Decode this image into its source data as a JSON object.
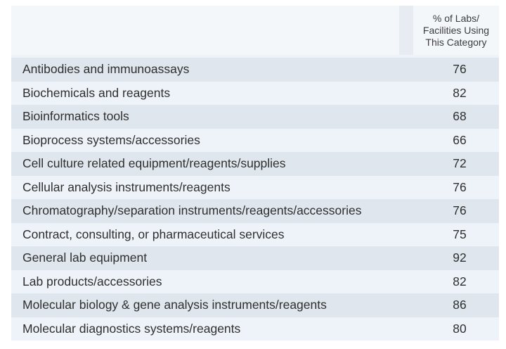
{
  "chart_data": {
    "type": "table",
    "header": "% of Labs/\nFacilities Using\nThis Category",
    "categories": [
      "Antibodies and immunoassays",
      "Biochemicals and reagents",
      "Bioinformatics tools",
      "Bioprocess systems/accessories",
      "Cell culture related equipment/reagents/supplies",
      "Cellular analysis instruments/reagents",
      "Chromatography/separation instruments/reagents/accessories",
      "Contract, consulting, or pharmaceutical services",
      "General lab equipment",
      "Lab products/accessories",
      "Molecular biology & gene analysis instruments/reagents",
      "Molecular diagnostics systems/reagents"
    ],
    "values": [
      76,
      82,
      68,
      66,
      72,
      76,
      76,
      75,
      92,
      82,
      86,
      80
    ]
  }
}
